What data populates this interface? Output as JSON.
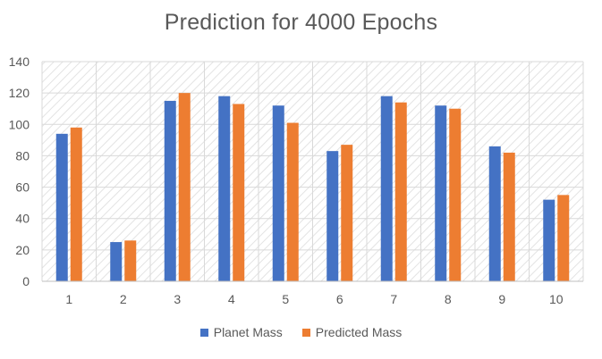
{
  "colors": {
    "planet": "#4472C4",
    "predicted": "#ED7D31",
    "grid": "#D9D9D9",
    "hatch": "#E3E3E3",
    "text": "#595959"
  },
  "chart_data": {
    "type": "bar",
    "title": "Prediction for 4000 Epochs",
    "xlabel": "",
    "ylabel": "",
    "categories": [
      "1",
      "2",
      "3",
      "4",
      "5",
      "6",
      "7",
      "8",
      "9",
      "10"
    ],
    "series": [
      {
        "name": "Planet Mass",
        "color": "#4472C4",
        "values": [
          94,
          25,
          115,
          118,
          112,
          83,
          118,
          112,
          86,
          52
        ]
      },
      {
        "name": "Predicted Mass",
        "color": "#ED7D31",
        "values": [
          98,
          26,
          120,
          113,
          101,
          87,
          114,
          110,
          82,
          55
        ]
      }
    ],
    "ylim": [
      0,
      140
    ],
    "yticks": [
      "0",
      "20",
      "40",
      "60",
      "80",
      "100",
      "120",
      "140"
    ],
    "grid": true,
    "legend_position": "bottom"
  }
}
